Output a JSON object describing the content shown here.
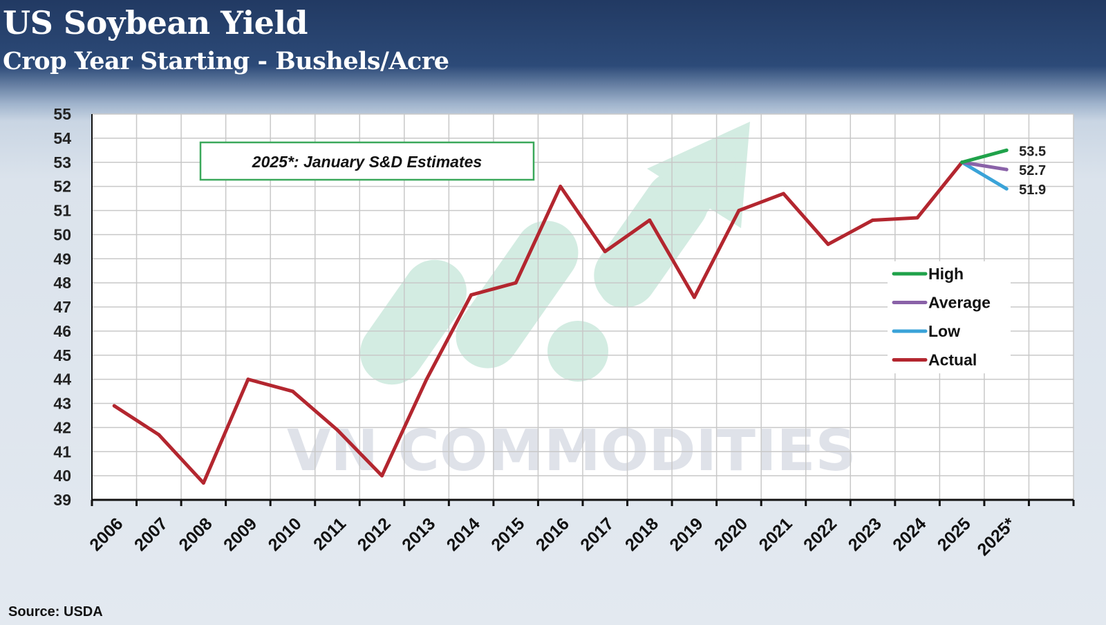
{
  "header": {
    "title": "US Soybean Yield",
    "subtitle": "Crop Year Starting - Bushels/Acre"
  },
  "source": "Source: USDA",
  "annotation": "2025*: January S&D Estimates",
  "watermark": "VN COMMODITIES",
  "colors": {
    "actual": "#b3262f",
    "high": "#1fa24a",
    "average": "#8a62a8",
    "low": "#3aa3d8",
    "annotation_border": "#3aa85a",
    "grid": "#c8c8c8",
    "axis": "#111111"
  },
  "chart_data": {
    "type": "line",
    "title": "US Soybean Yield",
    "subtitle": "Crop Year Starting - Bushels/Acre",
    "categories": [
      "2006",
      "2007",
      "2008",
      "2009",
      "2010",
      "2011",
      "2012",
      "2013",
      "2014",
      "2015",
      "2016",
      "2017",
      "2018",
      "2019",
      "2020",
      "2021",
      "2022",
      "2023",
      "2024",
      "2025",
      "2025*"
    ],
    "ylim": [
      39,
      55
    ],
    "yticks": [
      39,
      40,
      41,
      42,
      43,
      44,
      45,
      46,
      47,
      48,
      49,
      50,
      51,
      52,
      53,
      54,
      55
    ],
    "grid": true,
    "legend_position": "right",
    "series": [
      {
        "name": "High",
        "color": "#1fa24a",
        "points": [
          {
            "x": "2025",
            "y": 53.0
          },
          {
            "x": "2025*",
            "y": 53.5
          }
        ],
        "end_label": "53.5"
      },
      {
        "name": "Average",
        "color": "#8a62a8",
        "points": [
          {
            "x": "2025",
            "y": 53.0
          },
          {
            "x": "2025*",
            "y": 52.7
          }
        ],
        "end_label": "52.7"
      },
      {
        "name": "Low",
        "color": "#3aa3d8",
        "points": [
          {
            "x": "2025",
            "y": 53.0
          },
          {
            "x": "2025*",
            "y": 51.9
          }
        ],
        "end_label": "51.9"
      },
      {
        "name": "Actual",
        "color": "#b3262f",
        "points": [
          {
            "x": "2006",
            "y": 42.9
          },
          {
            "x": "2007",
            "y": 41.7
          },
          {
            "x": "2008",
            "y": 39.7
          },
          {
            "x": "2009",
            "y": 44.0
          },
          {
            "x": "2010",
            "y": 43.5
          },
          {
            "x": "2011",
            "y": 41.9
          },
          {
            "x": "2012",
            "y": 40.0
          },
          {
            "x": "2013",
            "y": 44.0
          },
          {
            "x": "2014",
            "y": 47.5
          },
          {
            "x": "2015",
            "y": 48.0
          },
          {
            "x": "2016",
            "y": 52.0
          },
          {
            "x": "2017",
            "y": 49.3
          },
          {
            "x": "2018",
            "y": 50.6
          },
          {
            "x": "2019",
            "y": 47.4
          },
          {
            "x": "2020",
            "y": 51.0
          },
          {
            "x": "2021",
            "y": 51.7
          },
          {
            "x": "2022",
            "y": 49.6
          },
          {
            "x": "2023",
            "y": 50.6
          },
          {
            "x": "2024",
            "y": 50.7
          },
          {
            "x": "2025",
            "y": 53.0
          }
        ]
      }
    ]
  }
}
